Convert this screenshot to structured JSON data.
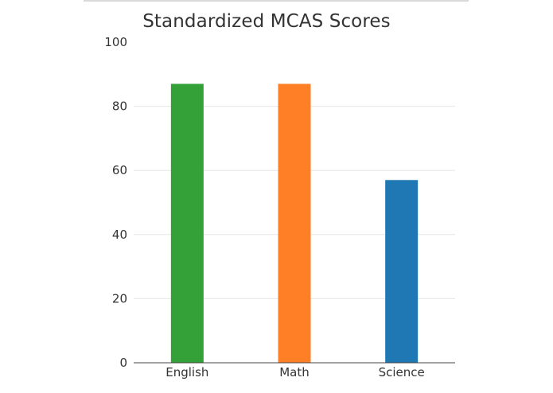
{
  "chart_data": {
    "type": "bar",
    "title": "Standardized MCAS Scores",
    "xlabel": "",
    "ylabel": "",
    "categories": [
      "English",
      "Math",
      "Science"
    ],
    "values": [
      87,
      87,
      57
    ],
    "colors": [
      "#33a038",
      "#ff7f27",
      "#1f77b4"
    ],
    "ylim": [
      0,
      100
    ],
    "yticks": [
      0,
      20,
      40,
      60,
      80,
      100
    ],
    "grid": true,
    "legend": "none"
  }
}
